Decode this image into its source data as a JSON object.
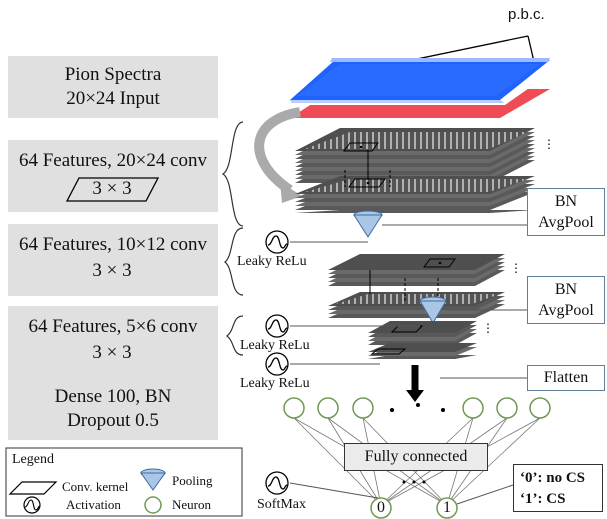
{
  "pbc_label": "p.b.c.",
  "blocks": [
    {
      "line1": "Pion Spectra",
      "line2": "20×24 Input"
    },
    {
      "line1": "64 Features, 20×24 conv",
      "kernel": "3 × 3"
    },
    {
      "line1": "64 Features, 10×12 conv",
      "kernel": "3 × 3"
    },
    {
      "line1": "64 Features, 5×6 conv",
      "kernel": "3 × 3"
    },
    {
      "line1": "Dense 100, BN",
      "line2": "Dropout 0.5"
    }
  ],
  "side_boxes": [
    {
      "line1": "BN",
      "line2": "AvgPool"
    },
    {
      "line1": "BN",
      "line2": "AvgPool"
    },
    {
      "line1": "Flatten"
    }
  ],
  "activation_labels": [
    "Leaky ReLu",
    "Leaky ReLu",
    "Leaky ReLu",
    "SoftMax"
  ],
  "fully_connected": "Fully connected",
  "output_nodes": [
    "0",
    "1"
  ],
  "class_labels": [
    "‘0’: no CS",
    "‘1’: CS"
  ],
  "legend": {
    "title": "Legend",
    "items": [
      "Conv. kernel",
      "Pooling",
      "Activation",
      "Neuron"
    ]
  },
  "colors": {
    "input_top": "#1f63ff",
    "input_bottom": "#ee4b55",
    "layer": "#595959",
    "box_fill": "#e0e0e0",
    "side_box_border": "#5f7f9b",
    "neuron": "#6f9a52",
    "pool": "#3d6e9e"
  }
}
